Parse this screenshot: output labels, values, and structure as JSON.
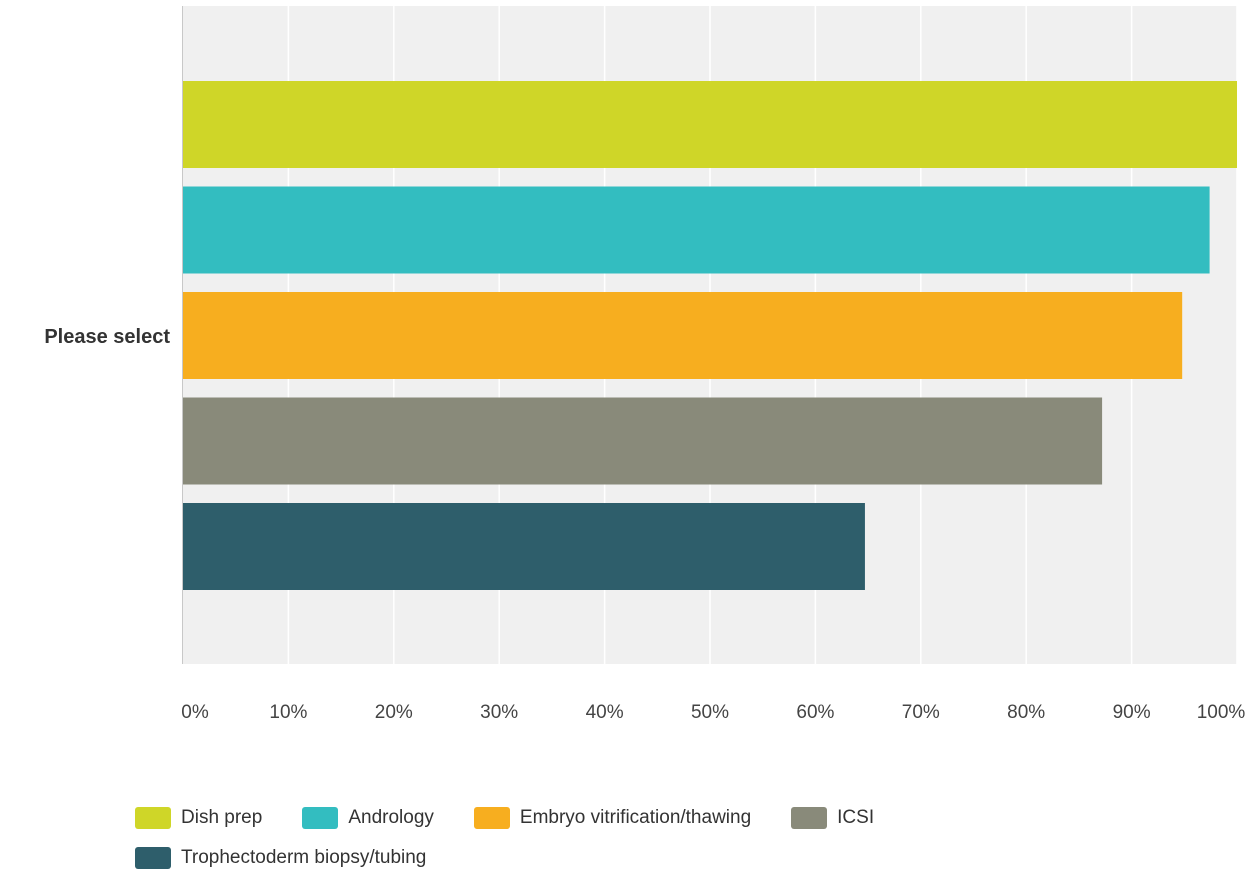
{
  "chart_data": {
    "type": "bar",
    "orientation": "horizontal",
    "categories": [
      "Please select"
    ],
    "series": [
      {
        "name": "Dish prep",
        "values": [
          100
        ],
        "color": "#cfd628"
      },
      {
        "name": "Andrology",
        "values": [
          97.4
        ],
        "color": "#33bdc0"
      },
      {
        "name": "Embryo vitrification/thawing",
        "values": [
          94.8
        ],
        "color": "#f7ae1f"
      },
      {
        "name": "ICSI",
        "values": [
          87.2
        ],
        "color": "#898a7a"
      },
      {
        "name": "Trophectoderm biopsy/tubing",
        "values": [
          64.7
        ],
        "color": "#2e5e6b"
      }
    ],
    "xticks": [
      "0%",
      "10%",
      "20%",
      "30%",
      "40%",
      "50%",
      "60%",
      "70%",
      "80%",
      "90%",
      "100%"
    ],
    "xlim": [
      0,
      100
    ],
    "grid": true,
    "legend_position": "bottom"
  }
}
